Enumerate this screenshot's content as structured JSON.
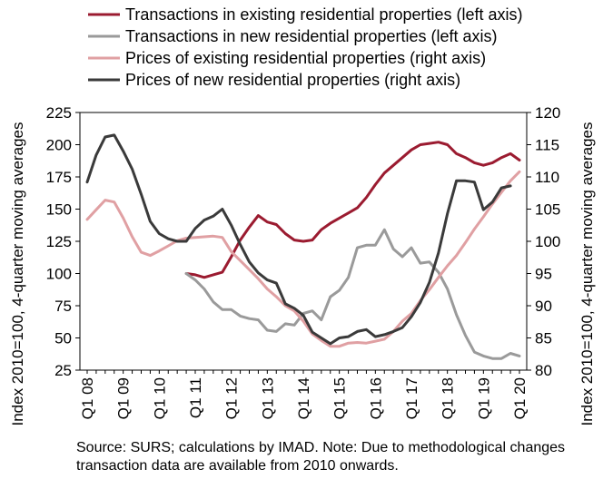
{
  "chart_data": {
    "type": "line",
    "x": [
      "Q1 08",
      "Q2 08",
      "Q3 08",
      "Q4 08",
      "Q1 09",
      "Q2 09",
      "Q3 09",
      "Q4 09",
      "Q1 10",
      "Q2 10",
      "Q3 10",
      "Q4 10",
      "Q1 11",
      "Q2 11",
      "Q3 11",
      "Q4 11",
      "Q1 12",
      "Q2 12",
      "Q3 12",
      "Q4 12",
      "Q1 13",
      "Q2 13",
      "Q3 13",
      "Q4 13",
      "Q1 14",
      "Q2 14",
      "Q3 14",
      "Q4 14",
      "Q1 15",
      "Q2 15",
      "Q3 15",
      "Q4 15",
      "Q1 16",
      "Q2 16",
      "Q3 16",
      "Q4 16",
      "Q1 17",
      "Q2 17",
      "Q3 17",
      "Q4 17",
      "Q1 18",
      "Q2 18",
      "Q3 18",
      "Q4 18",
      "Q1 19",
      "Q2 19",
      "Q3 19",
      "Q4 19",
      "Q1 20"
    ],
    "x_tick_labels": [
      "Q1 08",
      "Q1 09",
      "Q1 10",
      "Q1 11",
      "Q1 12",
      "Q1 13",
      "Q1 14",
      "Q1 15",
      "Q1 16",
      "Q1 17",
      "Q1 18",
      "Q1 19",
      "Q1 20"
    ],
    "ylabel_left": "Index 2010=100, 4-quarter moving averages",
    "ylabel_right": "Index 2010=100, 4-quarter moving averages",
    "ylim_left": [
      25,
      225
    ],
    "yticks_left": [
      25,
      50,
      75,
      100,
      125,
      150,
      175,
      200,
      225
    ],
    "ylim_right": [
      80,
      120
    ],
    "yticks_right": [
      80,
      85,
      90,
      95,
      100,
      105,
      110,
      115,
      120
    ],
    "grid": false,
    "legend_position": "top",
    "series": [
      {
        "name": "Transactions in existing residential properties (left axis)",
        "axis": "left",
        "color": "#9b1b30",
        "values": [
          null,
          null,
          null,
          null,
          null,
          null,
          null,
          null,
          null,
          null,
          null,
          100,
          99,
          97,
          99,
          101,
          113,
          126,
          136,
          145,
          140,
          138,
          131,
          126,
          125,
          126,
          134,
          139,
          143,
          147,
          151,
          159,
          169,
          178,
          184,
          190,
          196,
          200,
          201,
          202,
          200,
          193,
          190,
          186,
          184,
          186,
          190,
          193,
          188
        ]
      },
      {
        "name": "Transactions in new residential properties (left axis)",
        "axis": "left",
        "color": "#9a9a9a",
        "values": [
          null,
          null,
          null,
          null,
          null,
          null,
          null,
          null,
          null,
          null,
          null,
          100,
          95,
          88,
          78,
          72,
          72,
          67,
          65,
          64,
          56,
          55,
          61,
          60,
          69,
          71,
          64,
          82,
          87,
          97,
          120,
          122,
          122,
          134,
          119,
          113,
          120,
          108,
          109,
          101,
          88,
          68,
          52,
          39,
          36,
          34,
          34,
          38,
          36
        ]
      },
      {
        "name": "Prices of existing residential properties (right axis)",
        "axis": "right",
        "color": "#e0a0a3",
        "values": [
          103.4,
          104.9,
          106.4,
          106.1,
          103.6,
          100.7,
          98.3,
          97.8,
          98.5,
          99.3,
          100.1,
          100.5,
          100.6,
          100.7,
          100.8,
          100.6,
          98.4,
          97.0,
          95.6,
          94.2,
          92.6,
          91.4,
          90.0,
          89.2,
          87.6,
          85.6,
          84.6,
          83.7,
          83.7,
          84.2,
          84.3,
          84.2,
          84.5,
          84.8,
          86.0,
          87.6,
          88.8,
          90.8,
          92.5,
          94.4,
          96.2,
          97.8,
          99.8,
          101.9,
          103.8,
          105.8,
          107.6,
          109.4,
          110.8
        ]
      },
      {
        "name": "Prices of new residential properties (right axis)",
        "axis": "right",
        "color": "#3a3a3a",
        "values": [
          109.2,
          113.4,
          116.2,
          116.5,
          114.0,
          111.2,
          107.3,
          103.1,
          101.2,
          100.4,
          100.0,
          100.0,
          102.0,
          103.3,
          103.9,
          105.0,
          102.5,
          99.5,
          96.8,
          95.1,
          94.0,
          93.5,
          90.3,
          89.6,
          88.5,
          85.9,
          85.0,
          84.1,
          85.0,
          85.2,
          86.0,
          86.3,
          85.2,
          85.5,
          86.0,
          86.6,
          88.3,
          90.5,
          93.6,
          98.2,
          104.3,
          109.4,
          109.4,
          109.2,
          104.9,
          106.1,
          108.3,
          108.6,
          null
        ]
      }
    ],
    "source_note": "Source: SURS; calculations by IMAD. Note: Due to methodological changes transaction data are available from 2010 onwards."
  }
}
